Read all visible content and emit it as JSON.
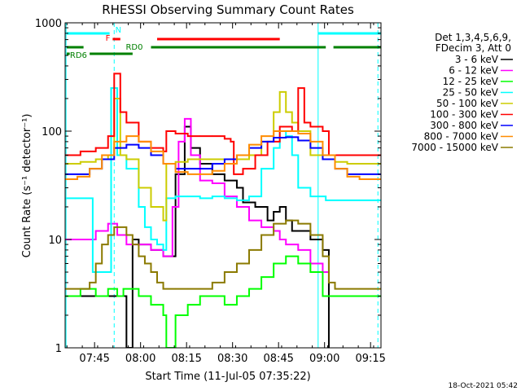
{
  "chart_data": {
    "type": "line",
    "title": "RHESSI Observing Summary Count Rates",
    "xlabel": "Start Time (11-Jul-05 07:35:22)",
    "ylabel": "Count Rate (s⁻¹ detector⁻¹)",
    "timestamp": "18-Oct-2021 05:42",
    "x_unit": "minutes since 07:35:22",
    "xlim": [
      0,
      103
    ],
    "ylim": [
      1,
      1000
    ],
    "y_scale": "log",
    "grid": false,
    "legend_position": "right",
    "x_ticks": [
      {
        "v": 9.6,
        "label": "07:45"
      },
      {
        "v": 24.6,
        "label": "08:00"
      },
      {
        "v": 39.6,
        "label": "08:15"
      },
      {
        "v": 54.6,
        "label": "08:30"
      },
      {
        "v": 69.6,
        "label": "08:45"
      },
      {
        "v": 84.6,
        "label": "09:00"
      },
      {
        "v": 99.6,
        "label": "09:15"
      }
    ],
    "y_ticks": [
      {
        "v": 1,
        "label": "1"
      },
      {
        "v": 10,
        "label": "10"
      },
      {
        "v": 100,
        "label": "100"
      },
      {
        "v": 1000,
        "label": "1000"
      }
    ],
    "legend_header": [
      "Det 1,3,4,5,6,9,",
      "FDecim 3, Att 0"
    ],
    "series": [
      {
        "name": "3 - 6 keV",
        "color": "#000000",
        "x": [
          0,
          17,
          19,
          20,
          22,
          24,
          28,
          32,
          36,
          39,
          41,
          44,
          48,
          52,
          56,
          58,
          62,
          66,
          68,
          70,
          72,
          74,
          76,
          80,
          84,
          86
        ],
        "y": [
          3,
          3,
          3,
          1,
          10,
          9,
          8,
          7,
          40,
          110,
          70,
          50,
          40,
          35,
          30,
          22,
          20,
          15,
          18,
          20,
          15,
          12,
          12,
          10,
          8,
          1
        ]
      },
      {
        "name": "6 - 12 keV",
        "color": "#ff00ff",
        "x": [
          0,
          6,
          10,
          14,
          17,
          20,
          24,
          28,
          32,
          35,
          37,
          39,
          41,
          44,
          48,
          52,
          56,
          60,
          64,
          68,
          70,
          72,
          76,
          80,
          84,
          86
        ],
        "y": [
          10,
          10,
          12,
          14,
          11,
          9,
          9,
          8,
          7,
          20,
          80,
          130,
          60,
          35,
          33,
          25,
          20,
          15,
          13,
          12,
          10,
          9,
          8,
          6,
          5,
          5
        ]
      },
      {
        "name": "12 - 25 keV",
        "color": "#00ff00",
        "x": [
          0,
          5,
          10,
          14,
          17,
          19,
          24,
          28,
          32,
          33,
          36,
          40,
          44,
          48,
          52,
          56,
          60,
          64,
          68,
          72,
          76,
          80,
          84,
          88,
          92,
          96,
          103
        ],
        "y": [
          3,
          3.5,
          3,
          3.5,
          3,
          3.5,
          3,
          2.5,
          2,
          1,
          2,
          2.5,
          3,
          3,
          2.5,
          3,
          3.5,
          4.5,
          6,
          7,
          6,
          5,
          3,
          3,
          3,
          3,
          3
        ]
      },
      {
        "name": "25 - 50 keV",
        "color": "#00ffff",
        "x": [
          0,
          8,
          9,
          12,
          15,
          17,
          20,
          24,
          26,
          28,
          30,
          32,
          33,
          36,
          40,
          44,
          48,
          52,
          56,
          60,
          64,
          68,
          70,
          72,
          74,
          76,
          80,
          84,
          85,
          90,
          96,
          103
        ],
        "y": [
          24,
          24,
          5,
          5,
          250,
          60,
          45,
          20,
          13,
          10,
          9,
          8,
          24,
          25,
          25,
          24,
          25,
          24,
          23,
          25,
          45,
          70,
          100,
          90,
          60,
          30,
          25,
          25,
          23,
          23,
          23,
          23
        ]
      },
      {
        "name": "50 - 100 keV",
        "color": "#cccc00",
        "x": [
          0,
          5,
          10,
          14,
          16,
          18,
          20,
          24,
          28,
          32,
          33,
          36,
          40,
          44,
          48,
          52,
          56,
          60,
          64,
          68,
          70,
          72,
          74,
          76,
          80,
          84,
          88,
          92,
          96,
          103
        ],
        "y": [
          50,
          52,
          55,
          60,
          200,
          60,
          55,
          30,
          20,
          15,
          50,
          52,
          55,
          55,
          55,
          55,
          55,
          60,
          80,
          150,
          230,
          150,
          120,
          100,
          60,
          55,
          52,
          50,
          50,
          50
        ]
      },
      {
        "name": "100 - 300 keV",
        "color": "#ff0000",
        "x": [
          0,
          5,
          10,
          14,
          16,
          18,
          20,
          24,
          28,
          32,
          33,
          36,
          40,
          44,
          48,
          52,
          54,
          55,
          58,
          62,
          66,
          70,
          74,
          76,
          78,
          80,
          84,
          86,
          88,
          92,
          96,
          103
        ],
        "y": [
          60,
          65,
          70,
          90,
          340,
          150,
          120,
          80,
          70,
          65,
          100,
          95,
          90,
          90,
          90,
          85,
          80,
          40,
          45,
          60,
          80,
          110,
          100,
          250,
          120,
          110,
          100,
          60,
          60,
          60,
          60,
          60
        ]
      },
      {
        "name": "300 - 800 keV",
        "color": "#0000ff",
        "x": [
          0,
          4,
          8,
          12,
          16,
          20,
          24,
          28,
          32,
          36,
          40,
          44,
          48,
          52,
          56,
          60,
          64,
          68,
          72,
          76,
          80,
          84,
          88,
          92,
          96,
          103
        ],
        "y": [
          40,
          40,
          45,
          55,
          70,
          75,
          70,
          60,
          50,
          45,
          45,
          45,
          50,
          55,
          60,
          70,
          80,
          87,
          88,
          82,
          70,
          55,
          45,
          40,
          40,
          40
        ]
      },
      {
        "name": "800 - 7000 keV",
        "color": "#ff8c00",
        "x": [
          0,
          4,
          8,
          12,
          16,
          20,
          24,
          28,
          32,
          36,
          40,
          44,
          48,
          52,
          56,
          60,
          64,
          68,
          72,
          76,
          80,
          84,
          88,
          92,
          96,
          103
        ],
        "y": [
          36,
          38,
          45,
          60,
          80,
          90,
          80,
          65,
          50,
          42,
          40,
          40,
          43,
          50,
          60,
          75,
          90,
          100,
          100,
          95,
          80,
          60,
          45,
          38,
          36,
          36
        ]
      },
      {
        "name": "7000 - 15000 keV",
        "color": "#8b7a00",
        "x": [
          0,
          4,
          8,
          10,
          12,
          14,
          16,
          18,
          20,
          22,
          24,
          26,
          28,
          30,
          32,
          36,
          40,
          44,
          48,
          52,
          56,
          60,
          64,
          68,
          72,
          76,
          80,
          84,
          86,
          88,
          92,
          96,
          103
        ],
        "y": [
          3.5,
          3.5,
          4,
          6,
          9,
          11,
          13,
          13,
          11,
          9,
          7,
          6,
          5,
          4,
          3.5,
          3.5,
          3.5,
          3.5,
          4,
          5,
          6,
          8,
          11,
          14,
          15,
          14,
          11,
          7,
          4,
          3.5,
          3.5,
          3.5,
          3.5
        ]
      }
    ],
    "flags": [
      {
        "label": "N",
        "color": "#00ffff",
        "segments": [
          [
            0.5,
            14.5
          ],
          [
            82.5,
            103
          ]
        ],
        "level": 0
      },
      {
        "label": "F",
        "color": "#ff0000",
        "segments": [
          [
            15.5,
            18
          ],
          [
            30,
            70
          ]
        ],
        "level": 1
      },
      {
        "label": "RD0",
        "color": "#008000",
        "segments": [
          [
            0.5,
            6
          ],
          [
            28,
            85
          ],
          [
            87.5,
            103
          ]
        ],
        "level": 2
      },
      {
        "label": "RD6",
        "color": "#008000",
        "segments": [
          [
            0.5,
            1.5
          ],
          [
            8,
            22
          ]
        ],
        "level": 3
      }
    ],
    "vlines": [
      {
        "x": 0.3,
        "color": "#00ffff",
        "style": "solid"
      },
      {
        "x": 16,
        "color": "#00ffff",
        "style": "dashed"
      },
      {
        "x": 82.5,
        "color": "#00ffff",
        "style": "solid"
      },
      {
        "x": 102,
        "color": "#00ffff",
        "style": "dashed"
      }
    ]
  }
}
